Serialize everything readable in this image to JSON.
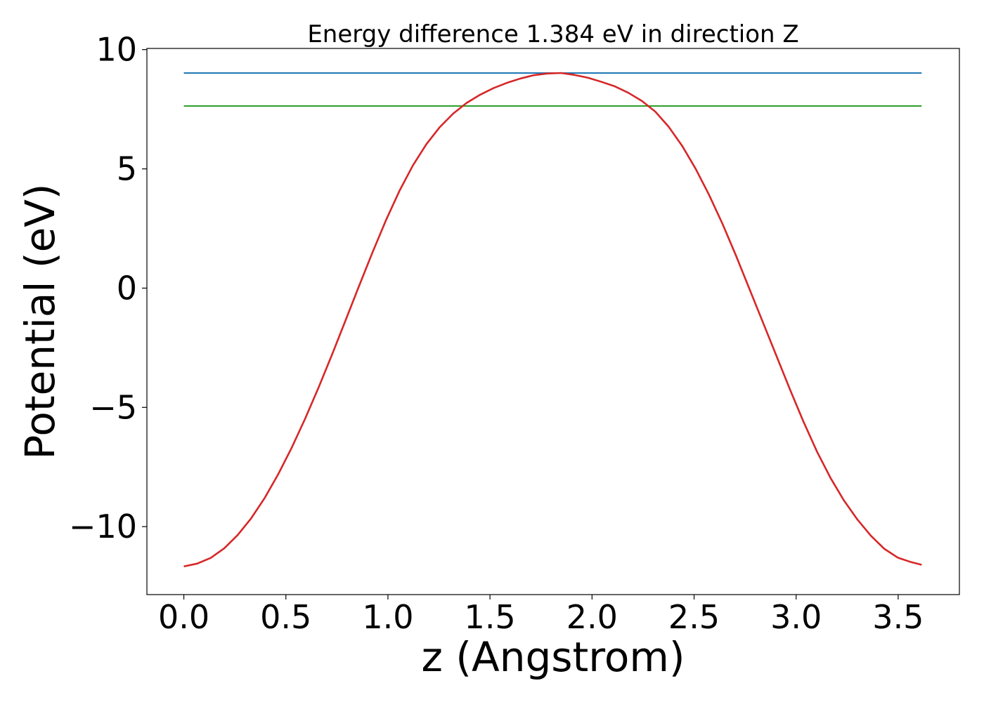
{
  "chart_data": {
    "type": "line",
    "title": "Energy difference 1.384 eV in direction Z",
    "xlabel": "z (Angstrom)",
    "ylabel": "Potential (eV)",
    "xlim": [
      -0.181,
      3.8
    ],
    "ylim": [
      -12.85,
      10.05
    ],
    "grid": false,
    "x_ticks": [
      0.0,
      0.5,
      1.0,
      1.5,
      2.0,
      2.5,
      3.0,
      3.5
    ],
    "x_tick_labels": [
      "0.0",
      "0.5",
      "1.0",
      "1.5",
      "2.0",
      "2.5",
      "3.0",
      "3.5"
    ],
    "y_ticks": [
      -10,
      -5,
      0,
      5,
      10
    ],
    "y_tick_labels": [
      "−10",
      "−5",
      "0",
      "5",
      "10"
    ],
    "series": [
      {
        "name": "potential",
        "color": "#d62728",
        "x": [
          0.0,
          0.066,
          0.132,
          0.198,
          0.264,
          0.33,
          0.396,
          0.462,
          0.528,
          0.594,
          0.66,
          0.726,
          0.792,
          0.858,
          0.924,
          0.99,
          1.056,
          1.122,
          1.188,
          1.254,
          1.32,
          1.386,
          1.452,
          1.518,
          1.584,
          1.65,
          1.716,
          1.782,
          1.848,
          1.914,
          1.98,
          2.046,
          2.112,
          2.178,
          2.244,
          2.31,
          2.376,
          2.442,
          2.508,
          2.574,
          2.64,
          2.706,
          2.772,
          2.838,
          2.904,
          2.97,
          3.036,
          3.102,
          3.168,
          3.234,
          3.3,
          3.366,
          3.432,
          3.498,
          3.564,
          3.615
        ],
        "y": [
          -11.67,
          -11.55,
          -11.31,
          -10.91,
          -10.35,
          -9.65,
          -8.8,
          -7.81,
          -6.7,
          -5.48,
          -4.17,
          -2.79,
          -1.36,
          0.08,
          1.49,
          2.84,
          4.07,
          5.14,
          6.03,
          6.75,
          7.32,
          7.77,
          8.11,
          8.39,
          8.61,
          8.79,
          8.93,
          9.0,
          9.02,
          8.94,
          8.82,
          8.65,
          8.46,
          8.19,
          7.85,
          7.4,
          6.76,
          5.96,
          5.0,
          3.9,
          2.68,
          1.35,
          -0.05,
          -1.45,
          -2.85,
          -4.25,
          -5.6,
          -6.85,
          -7.95,
          -8.9,
          -9.7,
          -10.38,
          -10.93,
          -11.3,
          -11.49,
          -11.6
        ]
      },
      {
        "name": "maximum",
        "color": "#1f77b4",
        "x": [
          0.0,
          3.615
        ],
        "y": [
          9.02,
          9.02
        ]
      },
      {
        "name": "maximum minus energy difference",
        "color": "#2ca02c",
        "x": [
          0.0,
          3.615
        ],
        "y": [
          7.636,
          7.636
        ]
      }
    ]
  }
}
